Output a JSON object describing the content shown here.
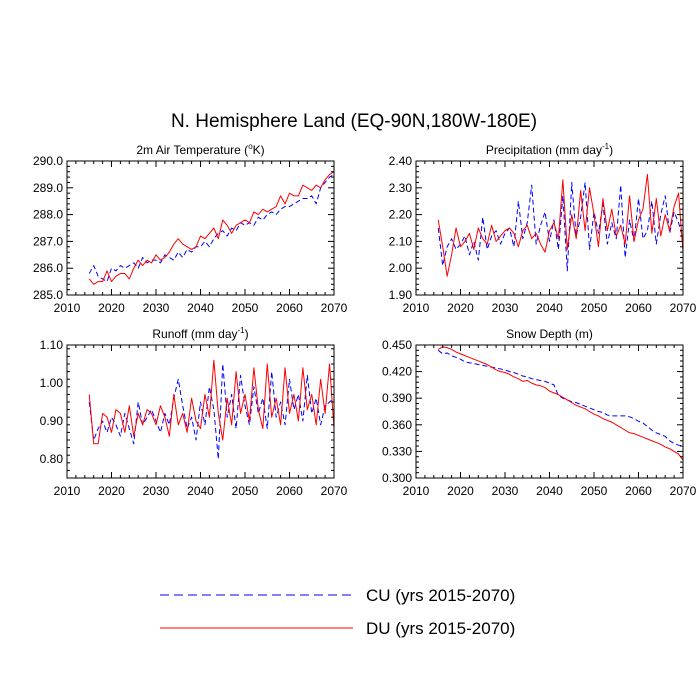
{
  "figure": {
    "title": "N. Hemisphere Land (EQ-90N,180W-180E)"
  },
  "legend": {
    "items": [
      {
        "label": "CU (yrs 2015-2070)",
        "color": "#0000ff",
        "style": "dashed"
      },
      {
        "label": "DU (yrs 2015-2070)",
        "color": "#ff0000",
        "style": "solid"
      }
    ]
  },
  "chart_data": [
    {
      "type": "line",
      "id": "air-temp",
      "title": "2m Air Temperature (°K)",
      "title_parts": [
        "2m Air Temperature (",
        "o",
        "K)"
      ],
      "xlim": [
        2010,
        2070
      ],
      "ylim": [
        285.0,
        290.0
      ],
      "xticks": [
        2010,
        2020,
        2030,
        2040,
        2050,
        2060,
        2070
      ],
      "xtick_labels": [
        "2010",
        "2020",
        "2030",
        "2040",
        "2050",
        "2060",
        "2070"
      ],
      "yticks": [
        285.0,
        286.0,
        287.0,
        288.0,
        289.0,
        290.0
      ],
      "ytick_labels": [
        "285.0",
        "286.0",
        "287.0",
        "288.0",
        "289.0",
        "290.0"
      ],
      "x": [
        2015,
        2016,
        2017,
        2018,
        2019,
        2020,
        2021,
        2022,
        2023,
        2024,
        2025,
        2026,
        2027,
        2028,
        2029,
        2030,
        2031,
        2032,
        2033,
        2034,
        2035,
        2036,
        2037,
        2038,
        2039,
        2040,
        2041,
        2042,
        2043,
        2044,
        2045,
        2046,
        2047,
        2048,
        2049,
        2050,
        2051,
        2052,
        2053,
        2054,
        2055,
        2056,
        2057,
        2058,
        2059,
        2060,
        2061,
        2062,
        2063,
        2064,
        2065,
        2066,
        2067,
        2068,
        2069,
        2070
      ],
      "series": [
        {
          "name": "CU (yrs 2015-2070)",
          "color": "#0000ff",
          "dashed": true,
          "values": [
            285.8,
            286.1,
            285.7,
            285.6,
            285.5,
            286.0,
            285.9,
            286.1,
            286.0,
            286.1,
            286.2,
            286.0,
            286.4,
            286.2,
            286.3,
            286.3,
            286.2,
            286.5,
            286.4,
            286.3,
            286.6,
            286.4,
            286.7,
            286.6,
            286.8,
            286.8,
            287.0,
            286.8,
            287.1,
            287.3,
            287.4,
            287.2,
            287.5,
            287.4,
            287.7,
            287.6,
            287.7,
            287.6,
            287.9,
            287.8,
            288.0,
            288.1,
            288.0,
            288.2,
            288.3,
            288.3,
            288.4,
            288.5,
            288.6,
            288.6,
            288.7,
            288.4,
            289.0,
            289.2,
            289.4,
            289.5
          ]
        },
        {
          "name": "DU (yrs 2015-2070)",
          "color": "#ff0000",
          "dashed": false,
          "values": [
            285.6,
            285.4,
            285.5,
            285.5,
            285.9,
            285.5,
            285.7,
            285.8,
            285.8,
            285.6,
            286.0,
            286.3,
            286.1,
            286.3,
            286.2,
            286.5,
            286.3,
            286.4,
            286.6,
            286.9,
            287.1,
            286.9,
            286.8,
            286.7,
            286.8,
            287.2,
            287.1,
            287.3,
            287.5,
            287.1,
            287.8,
            287.6,
            287.3,
            287.6,
            287.7,
            287.8,
            287.7,
            288.1,
            288.0,
            288.2,
            288.1,
            288.2,
            288.3,
            288.7,
            288.4,
            288.8,
            288.7,
            288.7,
            289.1,
            289.0,
            288.9,
            289.1,
            289.0,
            289.3,
            289.5,
            289.6
          ]
        }
      ]
    },
    {
      "type": "line",
      "id": "precip",
      "title": "Precipitation (mm day⁻¹)",
      "title_parts": [
        "Precipitation (mm day",
        "-1",
        ")"
      ],
      "xlim": [
        2010,
        2070
      ],
      "ylim": [
        1.9,
        2.4
      ],
      "xticks": [
        2010,
        2020,
        2030,
        2040,
        2050,
        2060,
        2070
      ],
      "xtick_labels": [
        "2010",
        "2020",
        "2030",
        "2040",
        "2050",
        "2060",
        "2070"
      ],
      "yticks": [
        1.9,
        2.0,
        2.1,
        2.2,
        2.3,
        2.4
      ],
      "ytick_labels": [
        "1.90",
        "2.00",
        "2.10",
        "2.20",
        "2.30",
        "2.40"
      ],
      "x": [
        2015,
        2016,
        2017,
        2018,
        2019,
        2020,
        2021,
        2022,
        2023,
        2024,
        2025,
        2026,
        2027,
        2028,
        2029,
        2030,
        2031,
        2032,
        2033,
        2034,
        2035,
        2036,
        2037,
        2038,
        2039,
        2040,
        2041,
        2042,
        2043,
        2044,
        2045,
        2046,
        2047,
        2048,
        2049,
        2050,
        2051,
        2052,
        2053,
        2054,
        2055,
        2056,
        2057,
        2058,
        2059,
        2060,
        2061,
        2062,
        2063,
        2064,
        2065,
        2066,
        2067,
        2068,
        2069,
        2070
      ],
      "series": [
        {
          "name": "CU (yrs 2015-2070)",
          "color": "#0000ff",
          "dashed": true,
          "values": [
            2.15,
            2.01,
            2.08,
            2.11,
            2.07,
            2.09,
            2.12,
            2.05,
            2.1,
            2.03,
            2.19,
            2.07,
            2.12,
            2.14,
            2.09,
            2.13,
            2.15,
            2.08,
            2.25,
            2.11,
            2.17,
            2.31,
            2.09,
            2.16,
            2.21,
            2.1,
            2.18,
            2.07,
            2.27,
            1.99,
            2.32,
            2.12,
            2.19,
            2.32,
            2.07,
            2.21,
            2.13,
            2.24,
            2.09,
            2.17,
            2.11,
            2.31,
            2.04,
            2.18,
            2.1,
            2.26,
            2.11,
            2.14,
            2.25,
            2.09,
            2.2,
            2.27,
            2.13,
            2.21,
            2.17,
            2.11
          ]
        },
        {
          "name": "DU (yrs 2015-2070)",
          "color": "#ff0000",
          "dashed": false,
          "values": [
            2.18,
            2.08,
            1.97,
            2.05,
            2.15,
            2.08,
            2.1,
            2.13,
            2.07,
            2.15,
            2.11,
            2.09,
            2.16,
            2.1,
            2.12,
            2.14,
            2.15,
            2.13,
            2.08,
            2.14,
            2.16,
            2.11,
            2.13,
            2.09,
            2.06,
            2.14,
            2.17,
            2.11,
            2.33,
            2.07,
            2.2,
            2.11,
            2.29,
            2.14,
            2.3,
            2.2,
            2.08,
            2.26,
            2.14,
            2.22,
            2.12,
            2.16,
            2.09,
            2.27,
            2.1,
            2.18,
            2.22,
            2.35,
            2.13,
            2.26,
            2.12,
            2.2,
            2.14,
            2.23,
            2.28,
            2.06
          ]
        }
      ]
    },
    {
      "type": "line",
      "id": "runoff",
      "title": "Runoff (mm day⁻¹)",
      "title_parts": [
        "Runoff (mm day",
        "-1",
        ")"
      ],
      "xlim": [
        2010,
        2070
      ],
      "ylim": [
        0.75,
        1.1
      ],
      "xticks": [
        2010,
        2020,
        2030,
        2040,
        2050,
        2060,
        2070
      ],
      "xtick_labels": [
        "2010",
        "2020",
        "2030",
        "2040",
        "2050",
        "2060",
        "2070"
      ],
      "yticks": [
        0.8,
        0.9,
        1.0,
        1.1
      ],
      "ytick_labels": [
        "0.80",
        "0.90",
        "1.00",
        "1.10"
      ],
      "x": [
        2015,
        2016,
        2017,
        2018,
        2019,
        2020,
        2021,
        2022,
        2023,
        2024,
        2025,
        2026,
        2027,
        2028,
        2029,
        2030,
        2031,
        2032,
        2033,
        2034,
        2035,
        2036,
        2037,
        2038,
        2039,
        2040,
        2041,
        2042,
        2043,
        2044,
        2045,
        2046,
        2047,
        2048,
        2049,
        2050,
        2051,
        2052,
        2053,
        2054,
        2055,
        2056,
        2057,
        2058,
        2059,
        2060,
        2061,
        2062,
        2063,
        2064,
        2065,
        2066,
        2067,
        2068,
        2069,
        2070
      ],
      "series": [
        {
          "name": "CU (yrs 2015-2070)",
          "color": "#0000ff",
          "dashed": true,
          "values": [
            0.95,
            0.85,
            0.88,
            0.9,
            0.87,
            0.91,
            0.89,
            0.86,
            0.92,
            0.88,
            0.84,
            0.95,
            0.89,
            0.91,
            0.93,
            0.9,
            0.87,
            0.92,
            0.89,
            0.96,
            1.01,
            0.94,
            0.88,
            0.91,
            0.85,
            0.95,
            0.89,
            0.99,
            0.93,
            0.8,
            1.05,
            0.91,
            0.97,
            0.88,
            1.02,
            0.94,
            0.89,
            0.99,
            0.92,
            0.96,
            0.88,
            1.03,
            0.91,
            0.95,
            0.89,
            1.01,
            0.93,
            0.97,
            0.9,
            1.02,
            0.92,
            0.96,
            0.89,
            0.94,
            0.95,
            0.96
          ]
        },
        {
          "name": "DU (yrs 2015-2070)",
          "color": "#ff0000",
          "dashed": false,
          "values": [
            0.97,
            0.84,
            0.84,
            0.92,
            0.91,
            0.87,
            0.93,
            0.92,
            0.87,
            0.94,
            0.86,
            0.92,
            0.89,
            0.93,
            0.92,
            0.89,
            0.94,
            0.91,
            0.86,
            0.97,
            0.89,
            0.92,
            0.87,
            0.96,
            0.9,
            0.88,
            0.97,
            0.91,
            1.06,
            0.92,
            0.85,
            0.96,
            0.89,
            1.03,
            0.92,
            0.97,
            0.9,
            1.04,
            0.93,
            0.88,
            1.05,
            0.91,
            0.96,
            0.89,
            1.04,
            0.92,
            0.97,
            0.9,
            1.04,
            0.93,
            0.97,
            0.89,
            1.01,
            0.92,
            1.05,
            0.88
          ]
        }
      ]
    },
    {
      "type": "line",
      "id": "snow",
      "title": "Snow Depth (m)",
      "title_parts": [
        "Snow Depth (m)"
      ],
      "xlim": [
        2010,
        2070
      ],
      "ylim": [
        0.3,
        0.45
      ],
      "xticks": [
        2010,
        2020,
        2030,
        2040,
        2050,
        2060,
        2070
      ],
      "xtick_labels": [
        "2010",
        "2020",
        "2030",
        "2040",
        "2050",
        "2060",
        "2070"
      ],
      "yticks": [
        0.3,
        0.33,
        0.36,
        0.39,
        0.42,
        0.45
      ],
      "ytick_labels": [
        "0.300",
        "0.330",
        "0.360",
        "0.390",
        "0.420",
        "0.450"
      ],
      "x": [
        2015,
        2016,
        2017,
        2018,
        2019,
        2020,
        2021,
        2022,
        2023,
        2024,
        2025,
        2026,
        2027,
        2028,
        2029,
        2030,
        2031,
        2032,
        2033,
        2034,
        2035,
        2036,
        2037,
        2038,
        2039,
        2040,
        2041,
        2042,
        2043,
        2044,
        2045,
        2046,
        2047,
        2048,
        2049,
        2050,
        2051,
        2052,
        2053,
        2054,
        2055,
        2056,
        2057,
        2058,
        2059,
        2060,
        2061,
        2062,
        2063,
        2064,
        2065,
        2066,
        2067,
        2068,
        2069,
        2070
      ],
      "series": [
        {
          "name": "CU (yrs 2015-2070)",
          "color": "#0000ff",
          "dashed": true,
          "values": [
            0.444,
            0.44,
            0.441,
            0.438,
            0.436,
            0.434,
            0.431,
            0.43,
            0.429,
            0.428,
            0.427,
            0.426,
            0.425,
            0.424,
            0.423,
            0.422,
            0.42,
            0.419,
            0.417,
            0.415,
            0.414,
            0.412,
            0.411,
            0.41,
            0.409,
            0.407,
            0.405,
            0.393,
            0.39,
            0.388,
            0.386,
            0.385,
            0.383,
            0.381,
            0.379,
            0.377,
            0.375,
            0.374,
            0.371,
            0.37,
            0.37,
            0.37,
            0.37,
            0.369,
            0.367,
            0.364,
            0.362,
            0.358,
            0.354,
            0.351,
            0.349,
            0.347,
            0.342,
            0.339,
            0.337,
            0.336
          ]
        },
        {
          "name": "DU (yrs 2015-2070)",
          "color": "#ff0000",
          "dashed": false,
          "values": [
            0.445,
            0.448,
            0.447,
            0.445,
            0.442,
            0.44,
            0.438,
            0.436,
            0.434,
            0.432,
            0.43,
            0.428,
            0.425,
            0.422,
            0.42,
            0.419,
            0.417,
            0.414,
            0.412,
            0.409,
            0.41,
            0.407,
            0.405,
            0.404,
            0.402,
            0.398,
            0.396,
            0.394,
            0.391,
            0.388,
            0.385,
            0.382,
            0.38,
            0.378,
            0.375,
            0.372,
            0.37,
            0.367,
            0.365,
            0.363,
            0.36,
            0.357,
            0.354,
            0.351,
            0.35,
            0.348,
            0.346,
            0.344,
            0.342,
            0.34,
            0.338,
            0.335,
            0.333,
            0.33,
            0.327,
            0.32
          ]
        }
      ]
    }
  ]
}
